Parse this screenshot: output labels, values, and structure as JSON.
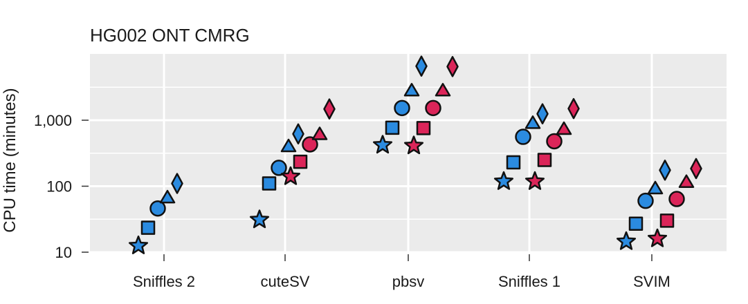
{
  "chart_data": {
    "type": "scatter",
    "title": "HG002 ONT CMRG",
    "xlabel": "",
    "ylabel": "CPU time (minutes)",
    "y_scale": "log",
    "ylim": [
      10,
      10000
    ],
    "y_ticks": [
      {
        "value": 10,
        "label": "10"
      },
      {
        "value": 100,
        "label": "100"
      },
      {
        "value": 1000,
        "label": "1,000"
      }
    ],
    "categories": [
      "Sniffles 2",
      "cuteSV",
      "pbsv",
      "Sniffles 1",
      "SVIM"
    ],
    "grid": true,
    "colors": {
      "blue": "#2b8be0",
      "red": "#db2559",
      "outline": "#111111",
      "panel": "#ebebeb",
      "grid": "#ffffff"
    },
    "marker_order": [
      "star",
      "square",
      "circle",
      "triangle",
      "diamond"
    ],
    "series": [
      {
        "color": "blue",
        "marker": "star",
        "values": [
          12.5,
          31,
          420,
          118,
          14.5
        ]
      },
      {
        "color": "blue",
        "marker": "square",
        "values": [
          23.5,
          110,
          770,
          230,
          27
        ]
      },
      {
        "color": "blue",
        "marker": "circle",
        "values": [
          46,
          190,
          1530,
          560,
          60
        ]
      },
      {
        "color": "blue",
        "marker": "triangle",
        "values": [
          67,
          400,
          2800,
          900,
          92
        ]
      },
      {
        "color": "blue",
        "marker": "diamond",
        "values": [
          110,
          620,
          6600,
          1250,
          175
        ]
      },
      {
        "color": "red",
        "marker": "star",
        "values": [
          null,
          140,
          410,
          118,
          16
        ]
      },
      {
        "color": "red",
        "marker": "square",
        "values": [
          null,
          235,
          760,
          250,
          30
        ]
      },
      {
        "color": "red",
        "marker": "circle",
        "values": [
          null,
          430,
          1530,
          480,
          64
        ]
      },
      {
        "color": "red",
        "marker": "triangle",
        "values": [
          null,
          610,
          2800,
          730,
          115
        ]
      },
      {
        "color": "red",
        "marker": "diamond",
        "values": [
          null,
          1480,
          6500,
          1500,
          185
        ]
      }
    ]
  }
}
